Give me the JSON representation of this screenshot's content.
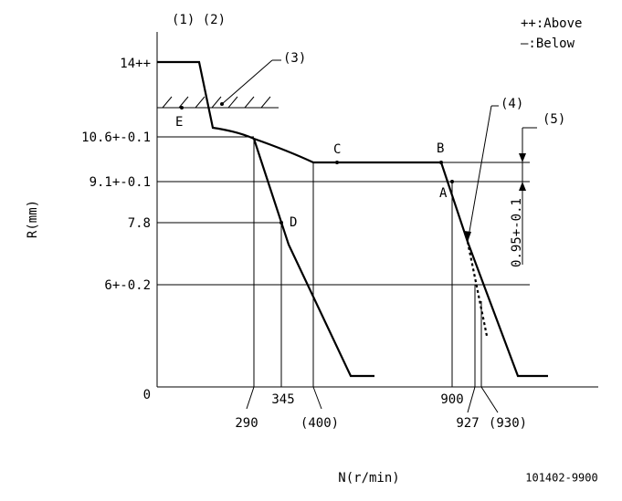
{
  "header": {
    "left": "(1) (2)",
    "legend_above": "++:Above",
    "legend_below": "—:Below"
  },
  "labels": {
    "n3": "(3)",
    "n4": "(4)",
    "n5": "(5)",
    "A": "A",
    "B": "B",
    "C": "C",
    "D": "D",
    "E": "E",
    "delta": "0.95+-0.1"
  },
  "y_labels": [
    "14++",
    "10.6+-0.1",
    "9.1+-0.1",
    "7.8",
    "6+-0.2",
    "0"
  ],
  "x_labels": [
    "290",
    "345",
    "(400)",
    "900",
    "927",
    "(930)"
  ],
  "axes": {
    "y": "R(mm)",
    "x": "N(r/min)"
  },
  "code": "101402-9900"
}
